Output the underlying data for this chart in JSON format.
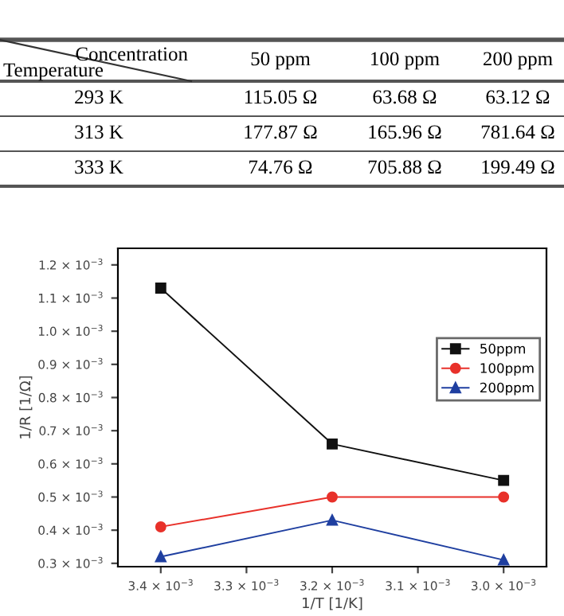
{
  "chart_data": [
    {
      "type": "other",
      "xlabel": "Concentration",
      "ylabel": "Temperature",
      "categories": [
        "50 ppm",
        "100 ppm",
        "200 ppm"
      ],
      "y_categories": [
        "293 K",
        "313 K",
        "333 K"
      ],
      "cell_labels": [
        [
          "115.05 Ω",
          "63.68 Ω",
          "63.12 Ω"
        ],
        [
          "177.87 Ω",
          "165.96 Ω",
          "781.64 Ω"
        ],
        [
          "74.76 Ω",
          "705.88 Ω",
          "199.49 Ω"
        ]
      ]
    },
    {
      "type": "line",
      "xlabel": "1/T [1/K]",
      "ylabel": "1/R [1/Ω]",
      "x": [
        0.0034,
        0.0032,
        0.003
      ],
      "series": [
        {
          "name": "50ppm",
          "color": "#111111",
          "marker": "square",
          "values": [
            0.00113,
            0.00066,
            0.00055
          ]
        },
        {
          "name": "100ppm",
          "color": "#e8312a",
          "marker": "circle",
          "values": [
            0.00041,
            0.0005,
            0.0005
          ]
        },
        {
          "name": "200ppm",
          "color": "#1f3fa0",
          "marker": "triangle",
          "values": [
            0.00032,
            0.00043,
            0.00031
          ]
        }
      ],
      "xlim": [
        0.00345,
        0.00295
      ],
      "xticks": [
        {
          "value": 0.0034,
          "label": "3.4 × 10$^{−3}$"
        },
        {
          "value": 0.0033,
          "label": "3.3 × 10$^{−3}$"
        },
        {
          "value": 0.0032,
          "label": "3.2 × 10$^{−3}$"
        },
        {
          "value": 0.0031,
          "label": "3.1 × 10$^{−3}$"
        },
        {
          "value": 0.003,
          "label": "3.0 × 10$^{−3}$"
        }
      ],
      "ylim": [
        0.00029,
        0.00125
      ],
      "yticks": [
        {
          "value": 0.0003,
          "label": "0.3 × 10$^{−3}$"
        },
        {
          "value": 0.0004,
          "label": "0.4 × 10$^{−3}$"
        },
        {
          "value": 0.0005,
          "label": "0.5 × 10$^{−3}$"
        },
        {
          "value": 0.0006,
          "label": "0.6 × 10$^{−3}$"
        },
        {
          "value": 0.0007,
          "label": "0.7 × 10$^{−3}$"
        },
        {
          "value": 0.0008,
          "label": "0.8 × 10$^{−3}$"
        },
        {
          "value": 0.0009,
          "label": "0.9 × 10$^{−3}$"
        },
        {
          "value": 0.001,
          "label": "1.0 × 10$^{−3}$"
        },
        {
          "value": 0.0011,
          "label": "1.1 × 10$^{−3}$"
        },
        {
          "value": 0.0012,
          "label": "1.2 × 10$^{−3}$"
        }
      ],
      "grid": false,
      "legend": "right",
      "line_style": "solid"
    }
  ]
}
